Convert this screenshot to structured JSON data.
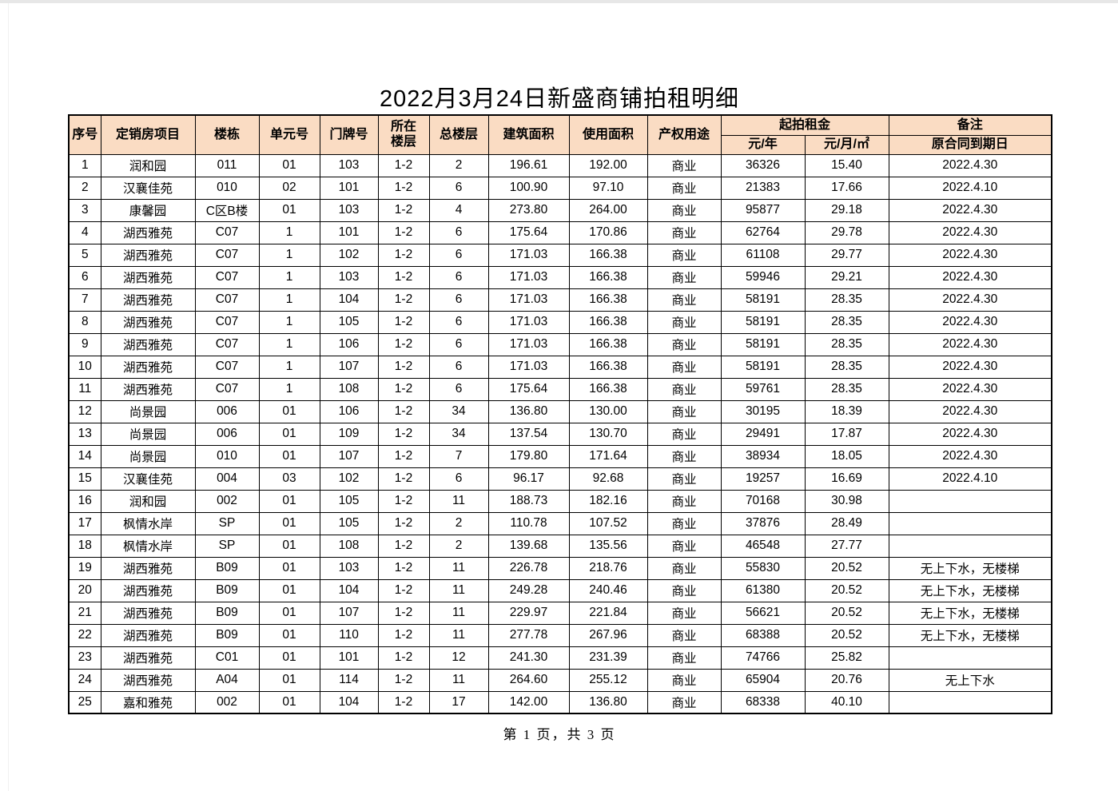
{
  "page": {
    "title": "2022月3月24日新盛商铺拍租明细",
    "footer": "第 1 页，共 3 页"
  },
  "colors": {
    "header_bg": "#fadcc3",
    "border": "#000000",
    "page_bg": "#ffffff"
  },
  "table": {
    "header": {
      "seq": "序号",
      "project": "定销房项目",
      "building": "楼栋",
      "unit": "单元号",
      "door": "门牌号",
      "floor_line1": "所在",
      "floor_line2": "楼层",
      "total_floors": "总楼层",
      "build_area": "建筑面积",
      "use_area": "使用面积",
      "usage": "产权用途",
      "rent_group": "起拍租金",
      "rent_per_year": "元/年",
      "rent_per_month": "元/月/㎡",
      "remark_group": "备注",
      "remark_sub": "原合同到期日"
    },
    "rows": [
      [
        "1",
        "润和园",
        "011",
        "01",
        "103",
        "1-2",
        "2",
        "196.61",
        "192.00",
        "商业",
        "36326",
        "15.40",
        "2022.4.30"
      ],
      [
        "2",
        "汉襄佳苑",
        "010",
        "02",
        "101",
        "1-2",
        "6",
        "100.90",
        "97.10",
        "商业",
        "21383",
        "17.66",
        "2022.4.10"
      ],
      [
        "3",
        "康馨园",
        "C区B楼",
        "01",
        "103",
        "1-2",
        "4",
        "273.80",
        "264.00",
        "商业",
        "95877",
        "29.18",
        "2022.4.30"
      ],
      [
        "4",
        "湖西雅苑",
        "C07",
        "1",
        "101",
        "1-2",
        "6",
        "175.64",
        "170.86",
        "商业",
        "62764",
        "29.78",
        "2022.4.30"
      ],
      [
        "5",
        "湖西雅苑",
        "C07",
        "1",
        "102",
        "1-2",
        "6",
        "171.03",
        "166.38",
        "商业",
        "61108",
        "29.77",
        "2022.4.30"
      ],
      [
        "6",
        "湖西雅苑",
        "C07",
        "1",
        "103",
        "1-2",
        "6",
        "171.03",
        "166.38",
        "商业",
        "59946",
        "29.21",
        "2022.4.30"
      ],
      [
        "7",
        "湖西雅苑",
        "C07",
        "1",
        "104",
        "1-2",
        "6",
        "171.03",
        "166.38",
        "商业",
        "58191",
        "28.35",
        "2022.4.30"
      ],
      [
        "8",
        "湖西雅苑",
        "C07",
        "1",
        "105",
        "1-2",
        "6",
        "171.03",
        "166.38",
        "商业",
        "58191",
        "28.35",
        "2022.4.30"
      ],
      [
        "9",
        "湖西雅苑",
        "C07",
        "1",
        "106",
        "1-2",
        "6",
        "171.03",
        "166.38",
        "商业",
        "58191",
        "28.35",
        "2022.4.30"
      ],
      [
        "10",
        "湖西雅苑",
        "C07",
        "1",
        "107",
        "1-2",
        "6",
        "171.03",
        "166.38",
        "商业",
        "58191",
        "28.35",
        "2022.4.30"
      ],
      [
        "11",
        "湖西雅苑",
        "C07",
        "1",
        "108",
        "1-2",
        "6",
        "175.64",
        "166.38",
        "商业",
        "59761",
        "28.35",
        "2022.4.30"
      ],
      [
        "12",
        "尚景园",
        "006",
        "01",
        "106",
        "1-2",
        "34",
        "136.80",
        "130.00",
        "商业",
        "30195",
        "18.39",
        "2022.4.30"
      ],
      [
        "13",
        "尚景园",
        "006",
        "01",
        "109",
        "1-2",
        "34",
        "137.54",
        "130.70",
        "商业",
        "29491",
        "17.87",
        "2022.4.30"
      ],
      [
        "14",
        "尚景园",
        "010",
        "01",
        "107",
        "1-2",
        "7",
        "179.80",
        "171.64",
        "商业",
        "38934",
        "18.05",
        "2022.4.30"
      ],
      [
        "15",
        "汉襄佳苑",
        "004",
        "03",
        "102",
        "1-2",
        "6",
        "96.17",
        "92.68",
        "商业",
        "19257",
        "16.69",
        "2022.4.10"
      ],
      [
        "16",
        "润和园",
        "002",
        "01",
        "105",
        "1-2",
        "11",
        "188.73",
        "182.16",
        "商业",
        "70168",
        "30.98",
        ""
      ],
      [
        "17",
        "枫情水岸",
        "SP",
        "01",
        "105",
        "1-2",
        "2",
        "110.78",
        "107.52",
        "商业",
        "37876",
        "28.49",
        ""
      ],
      [
        "18",
        "枫情水岸",
        "SP",
        "01",
        "108",
        "1-2",
        "2",
        "139.68",
        "135.56",
        "商业",
        "46548",
        "27.77",
        ""
      ],
      [
        "19",
        "湖西雅苑",
        "B09",
        "01",
        "103",
        "1-2",
        "11",
        "226.78",
        "218.76",
        "商业",
        "55830",
        "20.52",
        "无上下水，无楼梯"
      ],
      [
        "20",
        "湖西雅苑",
        "B09",
        "01",
        "104",
        "1-2",
        "11",
        "249.28",
        "240.46",
        "商业",
        "61380",
        "20.52",
        "无上下水，无楼梯"
      ],
      [
        "21",
        "湖西雅苑",
        "B09",
        "01",
        "107",
        "1-2",
        "11",
        "229.97",
        "221.84",
        "商业",
        "56621",
        "20.52",
        "无上下水，无楼梯"
      ],
      [
        "22",
        "湖西雅苑",
        "B09",
        "01",
        "110",
        "1-2",
        "11",
        "277.78",
        "267.96",
        "商业",
        "68388",
        "20.52",
        "无上下水，无楼梯"
      ],
      [
        "23",
        "湖西雅苑",
        "C01",
        "01",
        "101",
        "1-2",
        "12",
        "241.30",
        "231.39",
        "商业",
        "74766",
        "25.82",
        ""
      ],
      [
        "24",
        "湖西雅苑",
        "A04",
        "01",
        "114",
        "1-2",
        "11",
        "264.60",
        "255.12",
        "商业",
        "65904",
        "20.76",
        "无上下水"
      ],
      [
        "25",
        "嘉和雅苑",
        "002",
        "01",
        "104",
        "1-2",
        "17",
        "142.00",
        "136.80",
        "商业",
        "68338",
        "40.10",
        ""
      ]
    ]
  }
}
